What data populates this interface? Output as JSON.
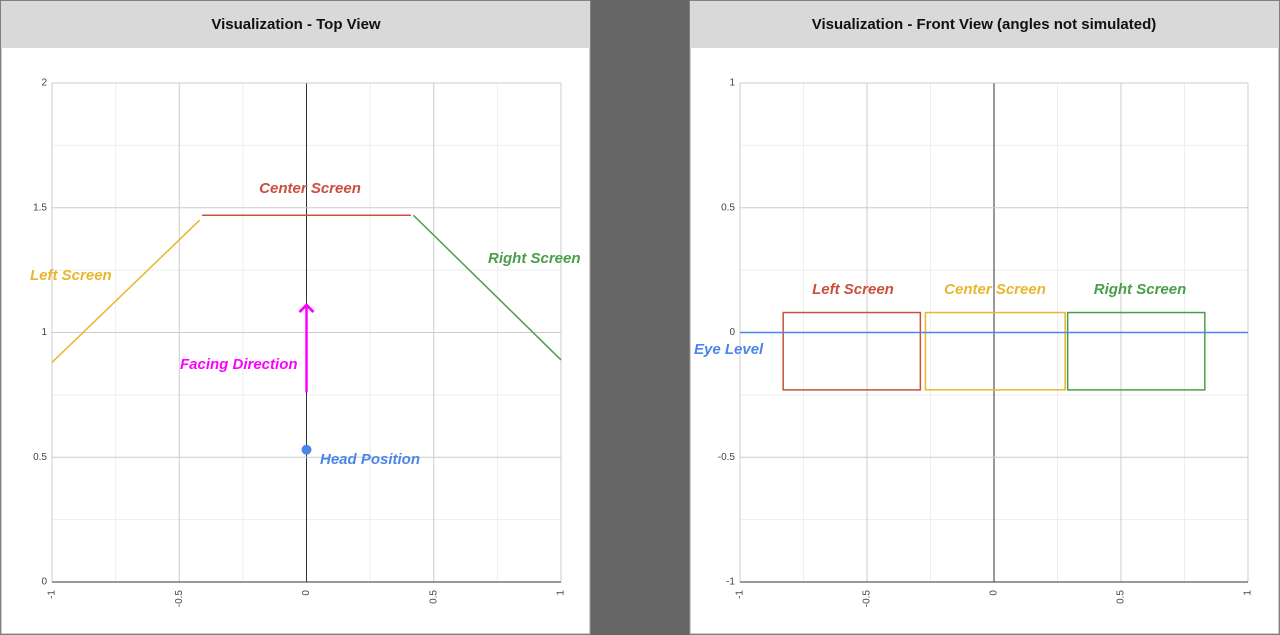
{
  "chart_data": [
    {
      "type": "line",
      "title": "Visualization - Top View",
      "xlim": [
        -1,
        1
      ],
      "ylim": [
        0,
        2
      ],
      "xticks": [
        -1,
        -0.5,
        0,
        0.5,
        1
      ],
      "yticks": [
        0,
        0.5,
        1,
        1.5,
        2
      ],
      "grid": true,
      "series": [
        {
          "name": "Left Screen",
          "color": "#e8b730",
          "x": [
            -1,
            -0.42
          ],
          "values": [
            0.88,
            1.45
          ]
        },
        {
          "name": "Center Screen",
          "color": "#c9503e",
          "x": [
            -0.41,
            0.41
          ],
          "values": [
            1.47,
            1.47
          ]
        },
        {
          "name": "Right Screen",
          "color": "#4a9e4a",
          "x": [
            0.42,
            1
          ],
          "values": [
            1.47,
            0.89
          ]
        },
        {
          "name": "Facing Direction",
          "color": "#ff00ff",
          "x": [
            0,
            0
          ],
          "values": [
            0.76,
            1.11
          ],
          "arrow": true
        },
        {
          "name": "Head Position",
          "color": "#4a86e8",
          "x": [
            0
          ],
          "values": [
            0.53
          ],
          "marker": true
        }
      ]
    },
    {
      "type": "rectangle",
      "title": "Visualization - Front View (angles not simulated)",
      "xlim": [
        -1,
        1
      ],
      "ylim": [
        -1,
        1
      ],
      "xticks": [
        -1,
        -0.5,
        0,
        0.5,
        1
      ],
      "yticks": [
        -1,
        -0.5,
        0,
        0.5,
        1
      ],
      "grid": true,
      "series": [
        {
          "name": "Left Screen",
          "color": "#c9503e",
          "x": [
            -0.83,
            -0.29
          ],
          "values": [
            -0.23,
            0.08
          ]
        },
        {
          "name": "Center Screen",
          "color": "#e8b730",
          "x": [
            -0.27,
            0.28
          ],
          "values": [
            -0.23,
            0.08
          ]
        },
        {
          "name": "Right Screen",
          "color": "#4a9e4a",
          "x": [
            0.29,
            0.83
          ],
          "values": [
            -0.23,
            0.08
          ]
        },
        {
          "name": "Eye Level",
          "color": "#4a86e8",
          "x": [
            -1,
            1
          ],
          "values": [
            0,
            0
          ],
          "type": "line"
        }
      ]
    }
  ]
}
